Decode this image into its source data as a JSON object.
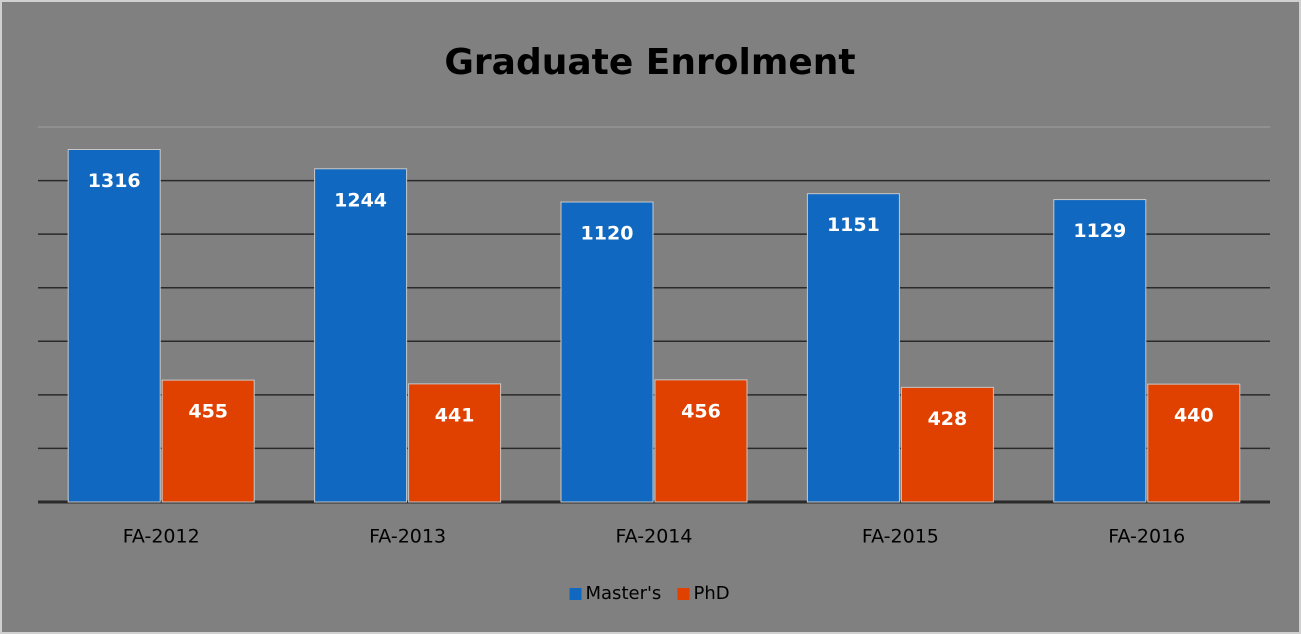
{
  "chart_data": {
    "type": "bar",
    "title": "Graduate Enrolment",
    "categories": [
      "FA-2012",
      "FA-2013",
      "FA-2014",
      "FA-2015",
      "FA-2016"
    ],
    "series": [
      {
        "name": "Master's",
        "color": "#1068c0",
        "values": [
          1316,
          1244,
          1120,
          1151,
          1129
        ]
      },
      {
        "name": "PhD",
        "color": "#e04000",
        "values": [
          455,
          441,
          456,
          428,
          440
        ]
      }
    ],
    "ylim": [
      0,
      1400
    ],
    "yticks": [
      0,
      200,
      400,
      600,
      800,
      1000,
      1200,
      1400
    ],
    "grid": true,
    "legend": "bottom"
  }
}
